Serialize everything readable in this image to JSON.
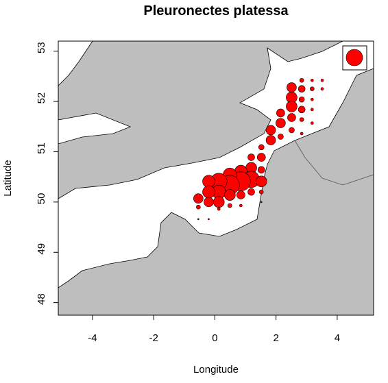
{
  "chart_data": {
    "type": "scatter",
    "title": "Pleuronectes platessa",
    "xlabel": "Longitude",
    "ylabel": "Latitude",
    "color": "#ff0000",
    "xlim": [
      -5.12,
      5.19
    ],
    "ylim": [
      47.75,
      53.2
    ],
    "xticks": [
      -4,
      -2,
      0,
      2,
      4
    ],
    "yticks": [
      48,
      49,
      50,
      51,
      52,
      53
    ],
    "x": [
      3.18,
      3.51,
      2.84,
      2.51,
      2.84,
      3.18,
      3.51,
      2.51,
      2.84,
      3.18,
      2.51,
      2.84,
      3.18,
      2.15,
      2.51,
      2.84,
      3.18,
      2.15,
      2.51,
      2.84,
      1.83,
      1.83,
      2.15,
      1.52,
      1.52,
      1.19,
      1.19,
      1.52,
      0.85,
      1.19,
      0.85,
      0.49,
      0.49,
      0.13,
      0.13,
      -0.2,
      -0.2,
      -0.2,
      -0.54,
      -0.54,
      -0.54,
      0.13,
      0.49,
      0.85,
      1.19,
      1.52,
      1.52,
      0.49,
      0.13,
      -0.2,
      0.85,
      1.52
    ],
    "y": [
      52.42,
      52.42,
      52.42,
      52.28,
      52.25,
      52.25,
      52.25,
      52.08,
      52.04,
      52.04,
      51.9,
      51.84,
      51.84,
      51.77,
      51.68,
      51.64,
      51.57,
      51.57,
      51.43,
      51.36,
      51.43,
      51.23,
      51.3,
      51.09,
      50.89,
      50.89,
      50.68,
      50.64,
      50.61,
      50.45,
      50.41,
      50.54,
      50.34,
      50.41,
      50.2,
      50.41,
      50.2,
      50.0,
      50.07,
      49.9,
      49.66,
      50.0,
      50.14,
      50.14,
      50.2,
      50.41,
      50.2,
      49.93,
      49.86,
      49.66,
      49.93,
      50.0
    ],
    "sizes": [
      2,
      2,
      3,
      7,
      5,
      3,
      2,
      8,
      4,
      2,
      8,
      5,
      2,
      6,
      6,
      3,
      2,
      7,
      4,
      2,
      7,
      7,
      4,
      4,
      6,
      5,
      8,
      5,
      9,
      12,
      14,
      10,
      14,
      12,
      10,
      9,
      9,
      7,
      7,
      3,
      1,
      8,
      8,
      6,
      5,
      8,
      3,
      3,
      2,
      1,
      2,
      1
    ]
  }
}
